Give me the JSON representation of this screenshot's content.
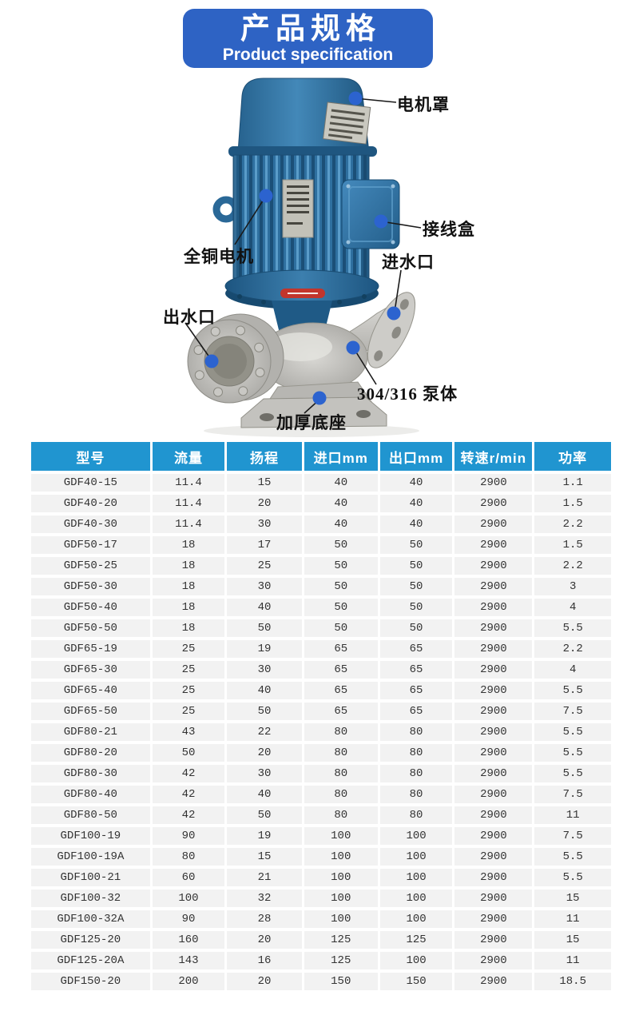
{
  "banner": {
    "title_zh": "产品规格",
    "title_en": "Product specification"
  },
  "diagram": {
    "annotations": [
      {
        "id": "motor-cover",
        "label": "电机罩"
      },
      {
        "id": "junction-box",
        "label": "接线盒"
      },
      {
        "id": "copper-motor",
        "label": "全铜电机"
      },
      {
        "id": "inlet",
        "label": "进水口"
      },
      {
        "id": "outlet",
        "label": "出水口"
      },
      {
        "id": "pump-body",
        "label": "304/316 泵体"
      },
      {
        "id": "base",
        "label": "加厚底座"
      }
    ]
  },
  "table": {
    "columns": [
      "型号",
      "流量",
      "扬程",
      "进口mm",
      "出口mm",
      "转速r/min",
      "功率"
    ],
    "rows": [
      [
        "GDF40-15",
        "11.4",
        "15",
        "40",
        "40",
        "2900",
        "1.1"
      ],
      [
        "GDF40-20",
        "11.4",
        "20",
        "40",
        "40",
        "2900",
        "1.5"
      ],
      [
        "GDF40-30",
        "11.4",
        "30",
        "40",
        "40",
        "2900",
        "2.2"
      ],
      [
        "GDF50-17",
        "18",
        "17",
        "50",
        "50",
        "2900",
        "1.5"
      ],
      [
        "GDF50-25",
        "18",
        "25",
        "50",
        "50",
        "2900",
        "2.2"
      ],
      [
        "GDF50-30",
        "18",
        "30",
        "50",
        "50",
        "2900",
        "3"
      ],
      [
        "GDF50-40",
        "18",
        "40",
        "50",
        "50",
        "2900",
        "4"
      ],
      [
        "GDF50-50",
        "18",
        "50",
        "50",
        "50",
        "2900",
        "5.5"
      ],
      [
        "GDF65-19",
        "25",
        "19",
        "65",
        "65",
        "2900",
        "2.2"
      ],
      [
        "GDF65-30",
        "25",
        "30",
        "65",
        "65",
        "2900",
        "4"
      ],
      [
        "GDF65-40",
        "25",
        "40",
        "65",
        "65",
        "2900",
        "5.5"
      ],
      [
        "GDF65-50",
        "25",
        "50",
        "65",
        "65",
        "2900",
        "7.5"
      ],
      [
        "GDF80-21",
        "43",
        "22",
        "80",
        "80",
        "2900",
        "5.5"
      ],
      [
        "GDF80-20",
        "50",
        "20",
        "80",
        "80",
        "2900",
        "5.5"
      ],
      [
        "GDF80-30",
        "42",
        "30",
        "80",
        "80",
        "2900",
        "5.5"
      ],
      [
        "GDF80-40",
        "42",
        "40",
        "80",
        "80",
        "2900",
        "7.5"
      ],
      [
        "GDF80-50",
        "42",
        "50",
        "80",
        "80",
        "2900",
        "11"
      ],
      [
        "GDF100-19",
        "90",
        "19",
        "100",
        "100",
        "2900",
        "7.5"
      ],
      [
        "GDF100-19A",
        "80",
        "15",
        "100",
        "100",
        "2900",
        "5.5"
      ],
      [
        "GDF100-21",
        "60",
        "21",
        "100",
        "100",
        "2900",
        "5.5"
      ],
      [
        "GDF100-32",
        "100",
        "32",
        "100",
        "100",
        "2900",
        "15"
      ],
      [
        "GDF100-32A",
        "90",
        "28",
        "100",
        "100",
        "2900",
        "11"
      ],
      [
        "GDF125-20",
        "160",
        "20",
        "125",
        "125",
        "2900",
        "15"
      ],
      [
        "GDF125-20A",
        "143",
        "16",
        "125",
        "100",
        "2900",
        "11"
      ],
      [
        "GDF150-20",
        "200",
        "20",
        "150",
        "150",
        "2900",
        "18.5"
      ]
    ]
  },
  "colors": {
    "banner_blue": "#2e63c4",
    "table_header_blue": "#2095d0",
    "annotation_dot_blue": "#2c63cf",
    "motor_blue": "#2e6f9f",
    "pump_silver": "#c6c5c1",
    "row_gray": "#f2f2f2"
  }
}
